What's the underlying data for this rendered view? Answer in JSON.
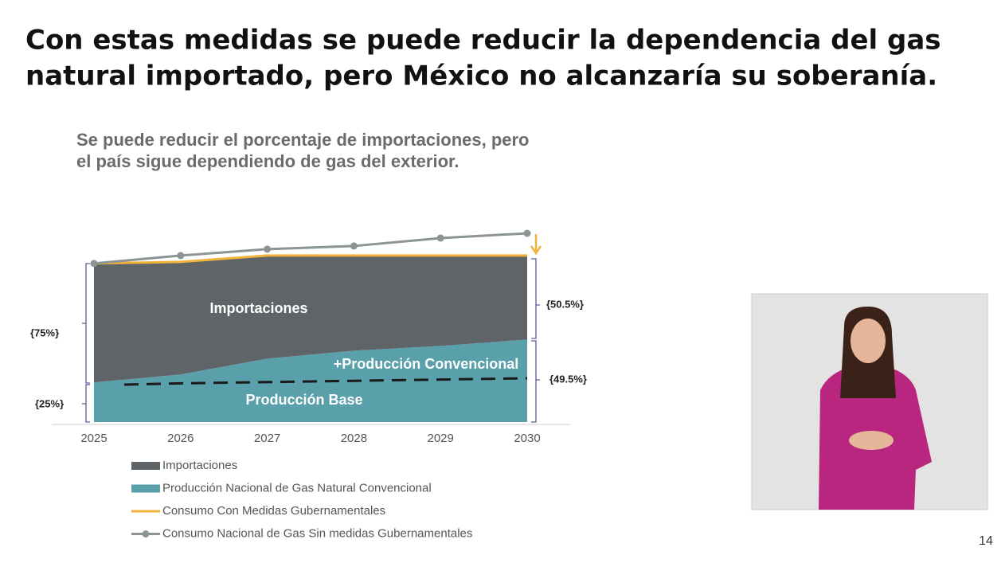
{
  "header": {
    "title_line1": "Con estas medidas se puede reducir la dependencia del gas",
    "title_line2": "natural importado, pero México no alcanzaría su soberanía."
  },
  "chart_data": {
    "type": "stacked_area_line",
    "subtitle_line1": "Se puede reducir el porcentaje de importaciones, pero",
    "subtitle_line2": "el país sigue dependiendo de gas del exterior.",
    "categories": [
      "2025",
      "2026",
      "2027",
      "2028",
      "2029",
      "2030"
    ],
    "series": [
      {
        "name": "Importaciones",
        "color": "#5f6468",
        "kind": "area",
        "values": [
          75,
          71,
          65,
          60,
          57,
          53
        ]
      },
      {
        "name": "Producción Nacional de Gas Natural Convencional",
        "color": "#5aa0aa",
        "kind": "area",
        "values": [
          25,
          30,
          40,
          45,
          48,
          52
        ]
      },
      {
        "name": "Consumo Con Medidas Gubernamentales",
        "color": "#f2b33d",
        "kind": "line",
        "values": [
          100,
          101,
          105,
          105,
          105,
          105
        ]
      },
      {
        "name": "Consumo Nacional de Gas Sin medidas Gubernamentales",
        "color": "#8c9494",
        "kind": "line-dots",
        "values": [
          100,
          105,
          109,
          111,
          116,
          119
        ]
      }
    ],
    "base_production": {
      "label": "Producción Base",
      "values": [
        23.6,
        24.4,
        25.2,
        26,
        26.8,
        27.6
      ]
    },
    "area_labels": {
      "imports": "Importaciones",
      "conventional": "+Producción Convencional"
    },
    "brackets": {
      "left_top": "{75%}",
      "left_bottom": "{25%}",
      "right_top": "{50.5%}",
      "right_bottom": "{49.5%}"
    }
  },
  "page_number": "14"
}
